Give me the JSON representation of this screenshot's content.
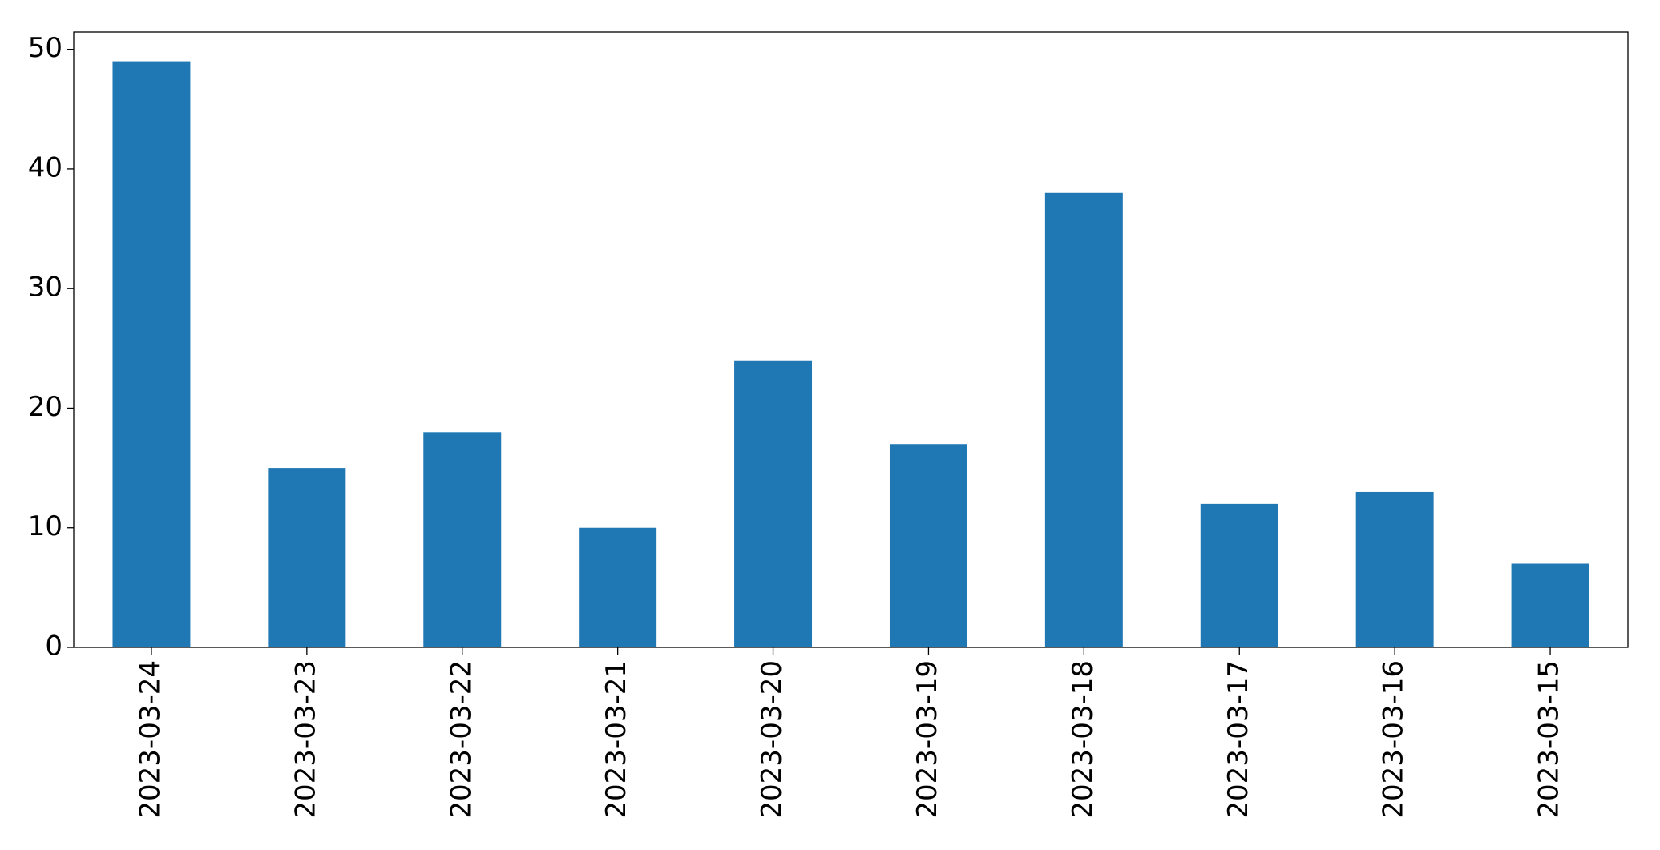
{
  "chart_data": {
    "type": "bar",
    "categories": [
      "2023-03-24",
      "2023-03-23",
      "2023-03-22",
      "2023-03-21",
      "2023-03-20",
      "2023-03-19",
      "2023-03-18",
      "2023-03-17",
      "2023-03-16",
      "2023-03-15"
    ],
    "values": [
      49,
      15,
      18,
      10,
      24,
      17,
      38,
      12,
      13,
      7
    ],
    "color": "#1f77b4",
    "ylim": [
      0,
      51.45
    ],
    "yticks": [
      0,
      10,
      20,
      30,
      40,
      50
    ],
    "grid": false
  }
}
